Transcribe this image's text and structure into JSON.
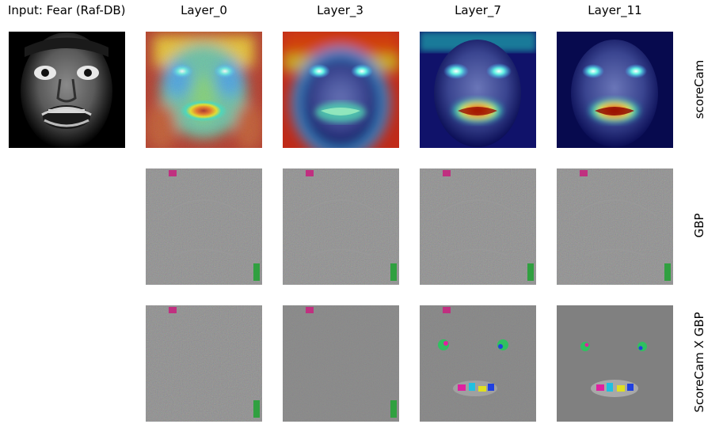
{
  "column_titles": [
    "Input: Fear (Raf-DB)",
    "Layer_0",
    "Layer_3",
    "Layer_7",
    "Layer_11"
  ],
  "row_labels": [
    "scoreCam",
    "GBP",
    "ScoreCam X GBP"
  ],
  "panels": {
    "input": "grayscale face photo, fearful expression",
    "scorecam_colormap": "jet",
    "gbp_background": "#828282",
    "scorecam_x_gbp_background": "#808080"
  }
}
